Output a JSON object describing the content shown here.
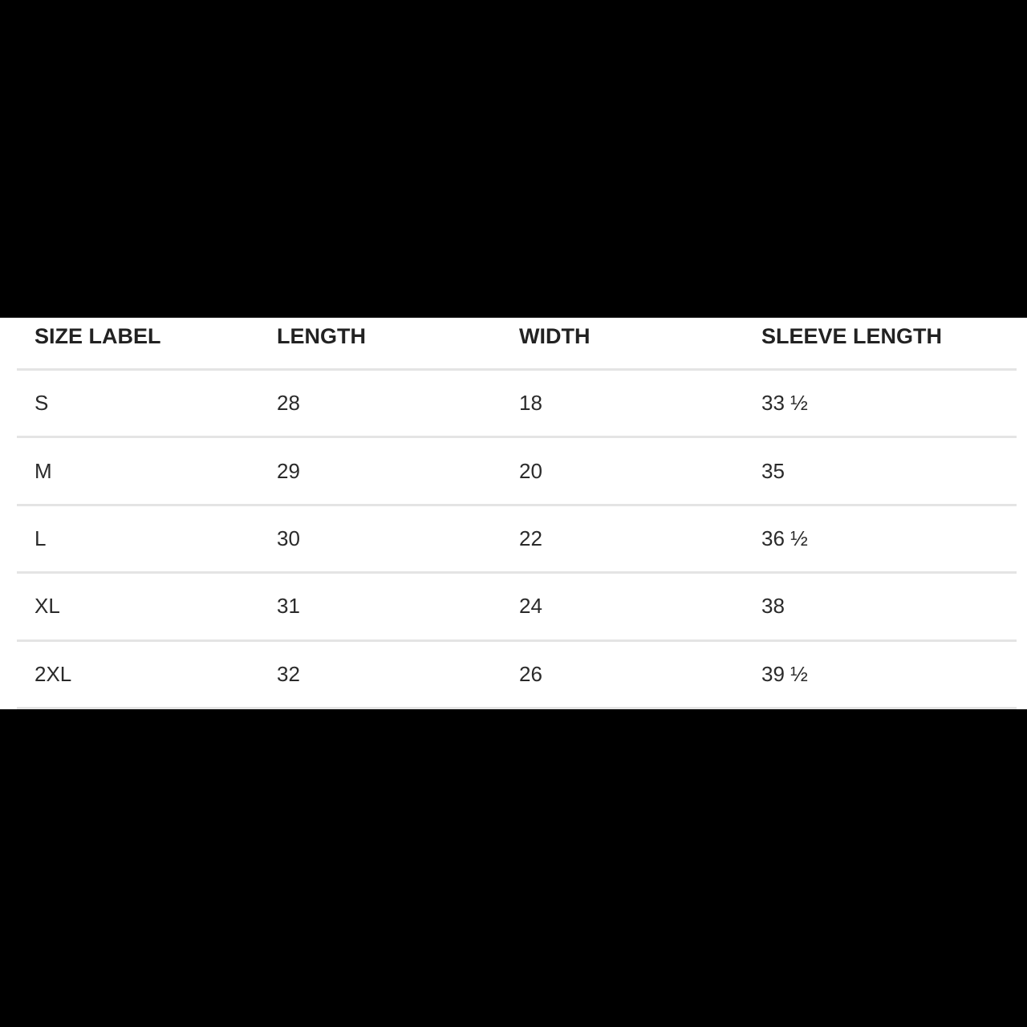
{
  "table": {
    "headers": [
      "SIZE LABEL",
      "LENGTH",
      "WIDTH",
      "SLEEVE LENGTH"
    ],
    "rows": [
      [
        "S",
        "28",
        "18",
        "33 ½"
      ],
      [
        "M",
        "29",
        "20",
        "35"
      ],
      [
        "L",
        "30",
        "22",
        "36 ½"
      ],
      [
        "XL",
        "31",
        "24",
        "38"
      ],
      [
        "2XL",
        "32",
        "26",
        "39 ½"
      ]
    ]
  }
}
